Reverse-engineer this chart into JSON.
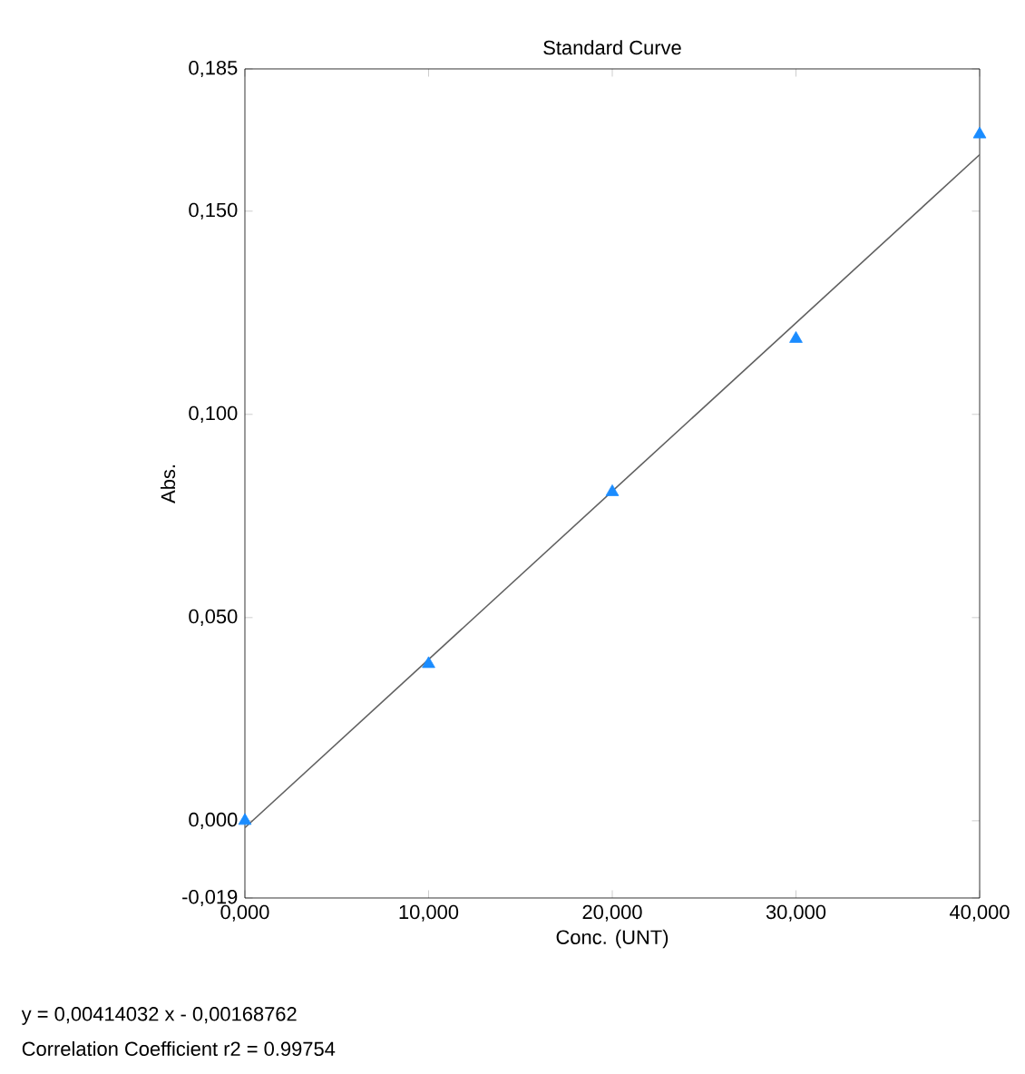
{
  "chart_data": {
    "type": "scatter",
    "title": "Standard Curve",
    "xlabel": "Conc. (UNT)",
    "ylabel": "Abs.",
    "x": [
      0,
      10,
      20,
      30,
      40
    ],
    "series": [
      {
        "color": "#1a8cff",
        "marker": "triangle",
        "values": [
          0.0,
          0.0386,
          0.0809,
          0.1186,
          0.1689
        ]
      },
      {
        "type": "line",
        "color": "#606060",
        "marker": "none",
        "x": [
          0,
          40
        ],
        "values": [
          -0.0017,
          0.1639
        ]
      }
    ],
    "xlim": [
      0,
      40
    ],
    "ylim": [
      -0.019,
      0.185
    ],
    "xticks": [
      {
        "value": 0,
        "label": "0,000"
      },
      {
        "value": 10,
        "label": "10,000"
      },
      {
        "value": 20,
        "label": "20,000"
      },
      {
        "value": 30,
        "label": "30,000"
      },
      {
        "value": 40,
        "label": "40,000"
      }
    ],
    "yticks": [
      {
        "value": -0.019,
        "label": "-0,019"
      },
      {
        "value": 0,
        "label": "0,000"
      },
      {
        "value": 0.05,
        "label": "0,050"
      },
      {
        "value": 0.1,
        "label": "0,100"
      },
      {
        "value": 0.15,
        "label": "0,150"
      },
      {
        "value": 0.185,
        "label": "0,185"
      }
    ],
    "grid": false,
    "annotations": [
      "y = 0,00414032 x - 0,00168762",
      "Correlation Coefficient r2 = 0.99754"
    ]
  }
}
